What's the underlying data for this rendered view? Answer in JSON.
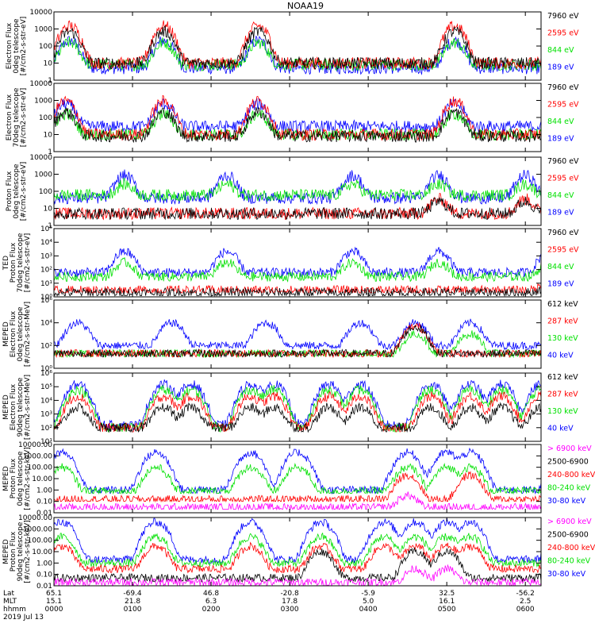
{
  "title": "NOAA19",
  "footer": {
    "row_labels": [
      "Lat",
      "MLT",
      "hhmm"
    ],
    "date": "2019 Jul 13",
    "columns": [
      {
        "time": "0000",
        "lat": "65.1",
        "mlt": "15.1",
        "hhmm": "0000"
      },
      {
        "time": "0100",
        "lat": "-69.4",
        "mlt": "21.8",
        "hhmm": "0100"
      },
      {
        "time": "0200",
        "lat": "46.8",
        "mlt": "6.3",
        "hhmm": "0200"
      },
      {
        "time": "0300",
        "lat": "-20.8",
        "mlt": "17.8",
        "hhmm": "0300"
      },
      {
        "time": "0400",
        "lat": "-5.9",
        "mlt": "5.0",
        "hhmm": "0400"
      },
      {
        "time": "0500",
        "lat": "32.5",
        "mlt": "16.1",
        "hhmm": "0500"
      },
      {
        "time": "0600",
        "lat": "-56.2",
        "mlt": "2.5",
        "hhmm": "0600"
      }
    ]
  },
  "colors": {
    "black": "#000000",
    "red": "#ff0000",
    "green": "#00e000",
    "blue": "#0000ff",
    "magenta": "#ff00ff"
  },
  "chart_data": [
    {
      "type": "line",
      "ylabel": [
        "Electron Flux",
        "0deg telescope",
        "[#/cm2-s-str-eV]"
      ],
      "yscale": "log",
      "ylim": [
        1,
        10000
      ],
      "ytick_values": [
        1,
        10,
        100,
        1000,
        10000
      ],
      "ytick_labels": [
        "1",
        "10",
        "100",
        "1000",
        "10000"
      ],
      "legend": [
        {
          "label": "7960 eV",
          "color": "#000000"
        },
        {
          "label": "2595 eV",
          "color": "#ff0000"
        },
        {
          "label": "844 eV",
          "color": "#00e000"
        },
        {
          "label": "189 eV",
          "color": "#0000ff"
        }
      ],
      "series": [
        {
          "color": "#0000ff",
          "base": 5,
          "amp": 200,
          "floor": 1.5,
          "peaks": [
            0.2,
            1.4,
            2.6,
            5.1,
            6.5
          ]
        },
        {
          "color": "#00e000",
          "base": 8,
          "amp": 150,
          "floor": 2,
          "peaks": [
            0.2,
            1.4,
            2.6,
            5.1,
            6.5
          ]
        },
        {
          "color": "#ff0000",
          "base": 10,
          "amp": 1500,
          "floor": 2,
          "peaks": [
            0.2,
            1.4,
            2.6,
            5.1,
            6.5
          ]
        },
        {
          "color": "#000000",
          "base": 10,
          "amp": 700,
          "floor": 2,
          "peaks": [
            0.2,
            1.4,
            2.6,
            5.1,
            6.5
          ]
        }
      ]
    },
    {
      "type": "line",
      "ylabel": [
        "Electron Flux",
        "70deg telescope",
        "[#/cm2-s-str-eV]"
      ],
      "yscale": "log",
      "ylim": [
        1,
        10000
      ],
      "ytick_values": [
        1,
        10,
        100,
        1000,
        10000
      ],
      "ytick_labels": [
        "1",
        "10",
        "100",
        "1000",
        "10000"
      ],
      "legend": [
        {
          "label": "7960 eV",
          "color": "#000000"
        },
        {
          "label": "2595 eV",
          "color": "#ff0000"
        },
        {
          "label": "844 eV",
          "color": "#00e000"
        },
        {
          "label": "189 eV",
          "color": "#0000ff"
        }
      ],
      "series": [
        {
          "color": "#0000ff",
          "base": 30,
          "amp": 600,
          "floor": 3,
          "peaks": [
            0.15,
            1.4,
            2.6,
            5.1,
            6.5
          ]
        },
        {
          "color": "#00e000",
          "base": 10,
          "amp": 150,
          "floor": 2,
          "peaks": [
            0.15,
            1.4,
            2.6,
            5.1,
            6.5
          ]
        },
        {
          "color": "#ff0000",
          "base": 10,
          "amp": 900,
          "floor": 2,
          "peaks": [
            0.15,
            1.4,
            2.6,
            5.1,
            6.5
          ]
        },
        {
          "color": "#000000",
          "base": 8,
          "amp": 200,
          "floor": 2,
          "peaks": [
            0.15,
            1.4,
            2.6,
            5.1,
            6.5
          ]
        }
      ]
    },
    {
      "type": "line",
      "ylabel": [
        "Proton Flux",
        "0deg telescope",
        "[#/cm2-s-str-eV]"
      ],
      "yscale": "log",
      "ylim": [
        1,
        10000
      ],
      "ytick_values": [
        1,
        10,
        100,
        1000,
        10000
      ],
      "ytick_labels": [
        "1",
        "10",
        "100",
        "1000",
        "10000"
      ],
      "legend": [
        {
          "label": "7960 eV",
          "color": "#000000"
        },
        {
          "label": "2595 eV",
          "color": "#ff0000"
        },
        {
          "label": "844 eV",
          "color": "#00e000"
        },
        {
          "label": "189 eV",
          "color": "#0000ff"
        }
      ],
      "series": [
        {
          "color": "#0000ff",
          "base": 40,
          "amp": 800,
          "floor": 10,
          "peaks": [
            0.9,
            2.2,
            3.8,
            4.9,
            6.0
          ]
        },
        {
          "color": "#00e000",
          "base": 60,
          "amp": 200,
          "floor": 8,
          "peaks": [
            0.9,
            2.2,
            3.8,
            4.9,
            6.0
          ]
        },
        {
          "color": "#ff0000",
          "base": 5,
          "amp": 30,
          "floor": 2,
          "peaks": [
            4.9,
            6.0
          ]
        },
        {
          "color": "#000000",
          "base": 5,
          "amp": 20,
          "floor": 2,
          "peaks": [
            4.9,
            6.0
          ]
        }
      ]
    },
    {
      "type": "line",
      "ylabel": [
        "TED",
        "Proton Flux",
        "70deg telescope",
        "[#/cm2-s-str-eV]"
      ],
      "yscale": "log",
      "ylim": [
        1,
        100000
      ],
      "ytick_values": [
        1,
        10,
        100,
        1000,
        10000,
        100000
      ],
      "ytick_labels": [
        "10⁰",
        "10¹",
        "10²",
        "10³",
        "10⁴",
        "10⁵"
      ],
      "legend": [
        {
          "label": "7960 eV",
          "color": "#000000"
        },
        {
          "label": "2595 eV",
          "color": "#ff0000"
        },
        {
          "label": "844 eV",
          "color": "#00e000"
        },
        {
          "label": "189 eV",
          "color": "#0000ff"
        }
      ],
      "series": [
        {
          "color": "#0000ff",
          "base": 60,
          "amp": 2000,
          "floor": 20,
          "peaks": [
            0.9,
            2.2,
            3.8,
            4.9,
            6.3
          ]
        },
        {
          "color": "#00e000",
          "base": 30,
          "amp": 300,
          "floor": 10,
          "peaks": [
            0.9,
            2.2,
            3.8,
            4.9,
            6.3
          ]
        },
        {
          "color": "#ff0000",
          "base": 3,
          "amp": 10,
          "floor": 2,
          "peaks": [
            6.3
          ]
        },
        {
          "color": "#000000",
          "base": 2,
          "amp": 5,
          "floor": 1.2,
          "peaks": [
            6.3
          ]
        }
      ]
    },
    {
      "type": "line",
      "ylabel": [
        "MEPED",
        "Electron Flux",
        "0deg telescope",
        "[#/cm2-s-str-MeV]"
      ],
      "yscale": "log",
      "ylim": [
        1,
        1000000
      ],
      "ytick_values": [
        1,
        100,
        10000,
        1000000
      ],
      "ytick_labels": [
        "10⁰",
        "10²",
        "10⁴",
        "10⁶"
      ],
      "legend": [
        {
          "label": "612 keV",
          "color": "#000000"
        },
        {
          "label": "287 keV",
          "color": "#ff0000"
        },
        {
          "label": "130 keV",
          "color": "#00e000"
        },
        {
          "label": "40 keV",
          "color": "#0000ff"
        }
      ],
      "series": [
        {
          "color": "#0000ff",
          "base": 100,
          "amp": 10000,
          "floor": 40,
          "peaks": [
            0.3,
            1.5,
            2.7,
            3.9,
            4.6,
            5.3,
            6.5
          ]
        },
        {
          "color": "#00e000",
          "base": 20,
          "amp": 1000,
          "floor": 10,
          "peaks": [
            4.6,
            5.3,
            6.5
          ]
        },
        {
          "color": "#ff0000",
          "base": 20,
          "amp": 5000,
          "floor": 10,
          "peaks": [
            4.6,
            6.5
          ]
        },
        {
          "color": "#000000",
          "base": 20,
          "amp": 4000,
          "floor": 10,
          "peaks": [
            4.6,
            6.5
          ]
        }
      ]
    },
    {
      "type": "line",
      "ylabel": [
        "MEPED",
        "Electron Flux",
        "90deg telescope",
        "[#/cm2-s-str-MeV]"
      ],
      "yscale": "log",
      "ylim": [
        10,
        1000000
      ],
      "ytick_values": [
        10,
        100,
        1000,
        10000,
        100000,
        1000000
      ],
      "ytick_labels": [
        "10¹",
        "10²",
        "10³",
        "10⁴",
        "10⁵",
        "10⁶"
      ],
      "legend": [
        {
          "label": "612 keV",
          "color": "#000000"
        },
        {
          "label": "287 keV",
          "color": "#ff0000"
        },
        {
          "label": "130 keV",
          "color": "#00e000"
        },
        {
          "label": "40 keV",
          "color": "#0000ff"
        }
      ],
      "series": [
        {
          "color": "#0000ff",
          "base": 150,
          "amp": 150000,
          "floor": 60,
          "peaks": [
            0.3,
            1.4,
            1.75,
            2.5,
            2.8,
            3.5,
            3.9,
            4.8,
            5.3,
            5.7,
            6.2,
            6.6
          ]
        },
        {
          "color": "#00e000",
          "base": 100,
          "amp": 60000,
          "floor": 50,
          "peaks": [
            0.3,
            1.4,
            1.75,
            2.5,
            2.8,
            3.5,
            3.9,
            4.8,
            5.3,
            5.7,
            6.2,
            6.6
          ]
        },
        {
          "color": "#ff0000",
          "base": 100,
          "amp": 20000,
          "floor": 50,
          "peaks": [
            0.3,
            1.4,
            1.75,
            2.5,
            2.8,
            3.5,
            3.9,
            4.8,
            5.3,
            5.7,
            6.2,
            6.6
          ]
        },
        {
          "color": "#000000",
          "base": 100,
          "amp": 3000,
          "floor": 50,
          "peaks": [
            0.3,
            1.4,
            1.75,
            2.5,
            2.8,
            3.5,
            3.9,
            4.8,
            5.3,
            5.7,
            6.2,
            6.6
          ]
        }
      ]
    },
    {
      "type": "line",
      "ylabel": [
        "MEPED",
        "Proton Flux",
        "0deg telescope",
        "[#/cm2-s-str-keV]"
      ],
      "yscale": "log",
      "ylim": [
        0.01,
        10000
      ],
      "ytick_values": [
        0.01,
        0.1,
        1,
        10,
        100,
        1000,
        10000
      ],
      "ytick_labels": [
        "0.01",
        "0.10",
        "1.00",
        "10.00",
        "100.00",
        "1000.00",
        "10000.00"
      ],
      "legend": [
        {
          "label": "> 6900 keV",
          "color": "#ff00ff"
        },
        {
          "label": "2500-6900",
          "color": "#000000"
        },
        {
          "label": "240-800 keV",
          "color": "#ff0000"
        },
        {
          "label": "80-240 keV",
          "color": "#00e000"
        },
        {
          "label": "30-80 keV",
          "color": "#0000ff"
        }
      ],
      "series": [
        {
          "color": "#0000ff",
          "base": 1,
          "amp": 2000,
          "floor": 0.5,
          "peaks": [
            0.1,
            1.3,
            2.5,
            3.1,
            4.5,
            5.0,
            5.3,
            6.5
          ]
        },
        {
          "color": "#00e000",
          "base": 0.8,
          "amp": 100,
          "floor": 0.5,
          "peaks": [
            0.1,
            1.3,
            2.5,
            3.1,
            4.5,
            5.0,
            5.3,
            6.5
          ]
        },
        {
          "color": "#ff0000",
          "base": 0.15,
          "amp": 20,
          "floor": 0.1,
          "peaks": [
            4.5,
            5.3,
            6.5
          ]
        },
        {
          "color": "#ff00ff",
          "base": 0.03,
          "amp": 0.3,
          "floor": 0.02,
          "peaks": [
            4.5,
            6.5
          ]
        }
      ]
    },
    {
      "type": "line",
      "ylabel": [
        "MEPED",
        "Proton Flux",
        "90deg telescope",
        "[#/cm2-s-str-keV]"
      ],
      "yscale": "log",
      "ylim": [
        0.01,
        10000
      ],
      "ytick_values": [
        0.01,
        0.1,
        1,
        10,
        100,
        1000,
        10000
      ],
      "ytick_labels": [
        "0.01",
        "0.10",
        "1.00",
        "10.00",
        "100.00",
        "1000.00",
        "10000.00"
      ],
      "legend": [
        {
          "label": "> 6900 keV",
          "color": "#ff00ff"
        },
        {
          "label": "2500-6900",
          "color": "#000000"
        },
        {
          "label": "240-800 keV",
          "color": "#ff0000"
        },
        {
          "label": "80-240 keV",
          "color": "#00e000"
        },
        {
          "label": "30-80 keV",
          "color": "#0000ff"
        }
      ],
      "series": [
        {
          "color": "#0000ff",
          "base": 2,
          "amp": 4000,
          "floor": 1,
          "peaks": [
            0.1,
            1.3,
            2.5,
            3.4,
            4.2,
            4.6,
            5.0,
            5.3,
            6.5
          ]
        },
        {
          "color": "#00e000",
          "base": 1,
          "amp": 200,
          "floor": 0.5,
          "peaks": [
            0.1,
            1.3,
            2.5,
            3.4,
            4.2,
            4.6,
            5.0,
            5.3,
            6.5
          ]
        },
        {
          "color": "#ff0000",
          "base": 0.3,
          "amp": 30,
          "floor": 0.1,
          "peaks": [
            0.1,
            1.3,
            2.5,
            3.4,
            4.2,
            4.6,
            5.0,
            5.3,
            6.5
          ]
        },
        {
          "color": "#000000",
          "base": 0.05,
          "amp": 10,
          "floor": 0.02,
          "peaks": [
            3.4,
            4.6,
            5.0,
            6.5
          ]
        },
        {
          "color": "#ff00ff",
          "base": 0.02,
          "amp": 0.3,
          "floor": 0.01,
          "peaks": [
            4.6,
            5.0,
            6.5
          ]
        }
      ]
    }
  ]
}
